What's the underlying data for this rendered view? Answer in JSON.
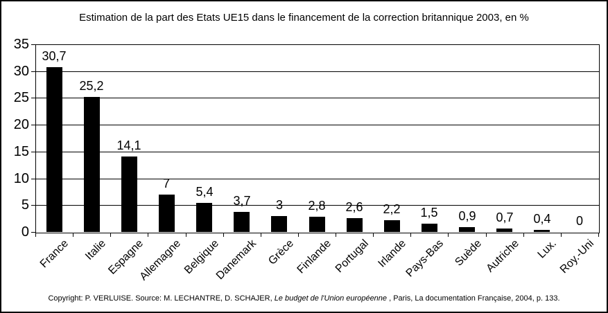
{
  "chart_data": {
    "type": "bar",
    "title": "Estimation de la part des Etats UE15 dans le financement de la correction britannique 2003, en %",
    "categories": [
      "France",
      "Italie",
      "Espagne",
      "Allemagne",
      "Belgique",
      "Danemark",
      "Grèce",
      "Finlande",
      "Portugal",
      "Irlande",
      "Pays-Bas",
      "Suède",
      "Autriche",
      "Lux.",
      "Roy.-Uni"
    ],
    "values": [
      30.7,
      25.2,
      14.1,
      7,
      5.4,
      3.7,
      3,
      2.8,
      2.6,
      2.2,
      1.5,
      0.9,
      0.7,
      0.4,
      0
    ],
    "value_labels": [
      "30,7",
      "25,2",
      "14,1",
      "7",
      "5,4",
      "3,7",
      "3",
      "2,8",
      "2,6",
      "2,2",
      "1,5",
      "0,9",
      "0,7",
      "0,4",
      "0"
    ],
    "xlabel": "",
    "ylabel": "",
    "ylim": [
      0,
      35
    ],
    "yticks": [
      0,
      5,
      10,
      15,
      20,
      25,
      30,
      35
    ],
    "bar_color": "#000000",
    "grid": true,
    "legend_position": "none"
  },
  "footer": {
    "prefix": "Copyright: P. VERLUISE. Source: M. LECHANTRE, D. SCHAJER, ",
    "italic": "Le budget de l'Union européenne",
    "suffix": " , Paris, La documentation Française, 2004, p. 133."
  }
}
